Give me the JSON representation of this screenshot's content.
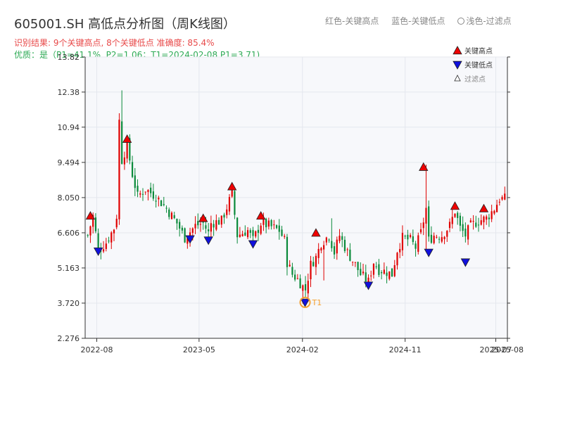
{
  "header": {
    "title": "605001.SH 高低点分析图（周K线图）",
    "result_line": "识别结果: 9个关键高点, 8个关键低点  准确度: 85.4%",
    "quality_line": "优质：是（P1=41.1%, P2=1.06；T1=2024-02-08 P1=3.71)"
  },
  "top_legend": {
    "red_label": "红色-关键高点",
    "blue_label": "蓝色-关键低点",
    "light_label": "浅色-过滤点"
  },
  "colors": {
    "up": "#e00000",
    "down": "#0a8a3a",
    "high_marker": "#ee0000",
    "low_marker": "#1010dd",
    "t1_ring": "#f5a030",
    "plot_bg": "#f7f8fb",
    "grid": "#e4e7ee"
  },
  "chart_data": {
    "type": "candlestick",
    "ylim": [
      2.276,
      13.82
    ],
    "yticks": [
      2.276,
      3.72,
      5.163,
      6.606,
      8.05,
      9.494,
      10.94,
      12.38,
      13.82
    ],
    "ytick_labels": [
      "2.276",
      "3.720",
      "5.163",
      "6.606",
      "8.050",
      "9.494",
      "10.94",
      "12.38",
      "13.82"
    ],
    "x_range": [
      "2022-07-01",
      "2025-08-01"
    ],
    "xticks": [
      "2022-08-01",
      "2023-05-01",
      "2024-02-01",
      "2024-11-01",
      "2025-07-01",
      "2025-08-01"
    ],
    "xtick_labels": [
      "2022-08",
      "2023-05",
      "2024-02",
      "2024-11",
      "2025-07",
      "2025-08"
    ],
    "grid": true,
    "legend_position": "top-right",
    "legend": [
      "关键高点",
      "关键低点",
      "过滤点"
    ],
    "close_path": [
      [
        "2022-07-08",
        6.5
      ],
      [
        "2022-07-22",
        7.3
      ],
      [
        "2022-08-05",
        5.9
      ],
      [
        "2022-08-26",
        6.2
      ],
      [
        "2022-09-16",
        6.8
      ],
      [
        "2022-09-23",
        7.3
      ],
      [
        "2022-09-30",
        11.2
      ],
      [
        "2022-10-07",
        9.6
      ],
      [
        "2022-10-21",
        10.2
      ],
      [
        "2022-11-04",
        9.0
      ],
      [
        "2022-11-18",
        8.1
      ],
      [
        "2022-12-09",
        8.4
      ],
      [
        "2023-01-06",
        8.1
      ],
      [
        "2023-02-03",
        7.6
      ],
      [
        "2023-03-03",
        7.0
      ],
      [
        "2023-03-24",
        6.4
      ],
      [
        "2023-04-21",
        6.9
      ],
      [
        "2023-05-12",
        7.0
      ],
      [
        "2023-05-26",
        6.6
      ],
      [
        "2023-06-02",
        7.0
      ],
      [
        "2023-06-30",
        7.1
      ],
      [
        "2023-07-28",
        8.2
      ],
      [
        "2023-08-11",
        6.5
      ],
      [
        "2023-09-08",
        6.7
      ],
      [
        "2023-09-22",
        6.3
      ],
      [
        "2023-10-13",
        7.0
      ],
      [
        "2023-11-03",
        6.9
      ],
      [
        "2023-12-01",
        6.7
      ],
      [
        "2023-12-15",
        6.3
      ],
      [
        "2023-12-22",
        5.4
      ],
      [
        "2024-01-05",
        4.9
      ],
      [
        "2024-01-19",
        4.7
      ],
      [
        "2024-02-02",
        4.4
      ],
      [
        "2024-02-08",
        4.2
      ],
      [
        "2024-02-23",
        5.3
      ],
      [
        "2024-03-08",
        5.6
      ],
      [
        "2024-03-22",
        6.2
      ],
      [
        "2024-04-12",
        6.5
      ],
      [
        "2024-04-26",
        5.8
      ],
      [
        "2024-05-10",
        6.5
      ],
      [
        "2024-05-31",
        5.8
      ],
      [
        "2024-06-21",
        5.3
      ],
      [
        "2024-07-05",
        4.9
      ],
      [
        "2024-07-26",
        4.6
      ],
      [
        "2024-08-09",
        5.4
      ],
      [
        "2024-08-23",
        5.1
      ],
      [
        "2024-09-13",
        5.0
      ],
      [
        "2024-09-27",
        4.9
      ],
      [
        "2024-10-11",
        5.9
      ],
      [
        "2024-10-25",
        6.4
      ],
      [
        "2024-11-15",
        6.3
      ],
      [
        "2024-11-29",
        6.0
      ],
      [
        "2024-12-13",
        6.6
      ],
      [
        "2024-12-27",
        7.6
      ],
      [
        "2025-01-03",
        6.3
      ],
      [
        "2025-01-17",
        6.5
      ],
      [
        "2025-02-07",
        6.5
      ],
      [
        "2025-02-28",
        6.9
      ],
      [
        "2025-03-14",
        7.5
      ],
      [
        "2025-03-28",
        6.8
      ],
      [
        "2025-04-11",
        6.5
      ],
      [
        "2025-04-25",
        6.9
      ],
      [
        "2025-05-16",
        7.1
      ],
      [
        "2025-06-06",
        7.2
      ],
      [
        "2025-06-27",
        7.6
      ],
      [
        "2025-07-11",
        8.0
      ],
      [
        "2025-07-25",
        8.0
      ]
    ],
    "spikes": [
      {
        "date": "2022-09-30",
        "high": 11.3
      },
      {
        "date": "2022-10-07",
        "high": 12.45
      },
      {
        "date": "2022-10-21",
        "high": 10.5
      },
      {
        "date": "2023-07-28",
        "high": 8.6
      },
      {
        "date": "2024-02-08",
        "low": 3.7
      },
      {
        "date": "2024-03-29",
        "low": 4.65
      },
      {
        "date": "2024-04-19",
        "high": 7.2
      },
      {
        "date": "2024-12-27",
        "high": 9.4
      },
      {
        "date": "2024-12-27",
        "low": 5.9
      }
    ],
    "key_highs": [
      {
        "date": "2022-07-15",
        "price": 7.3
      },
      {
        "date": "2022-10-21",
        "price": 10.45
      },
      {
        "date": "2023-05-12",
        "price": 7.2
      },
      {
        "date": "2023-07-28",
        "price": 8.5
      },
      {
        "date": "2023-10-13",
        "price": 7.3
      },
      {
        "date": "2024-03-08",
        "price": 6.6
      },
      {
        "date": "2024-12-20",
        "price": 9.3
      },
      {
        "date": "2025-03-14",
        "price": 7.7
      },
      {
        "date": "2025-05-30",
        "price": 7.6
      }
    ],
    "key_lows": [
      {
        "date": "2022-08-05",
        "price": 5.85
      },
      {
        "date": "2023-04-07",
        "price": 6.35
      },
      {
        "date": "2023-05-26",
        "price": 6.3
      },
      {
        "date": "2023-09-22",
        "price": 6.15
      },
      {
        "date": "2024-02-08",
        "price": 3.75
      },
      {
        "date": "2024-07-26",
        "price": 4.45
      },
      {
        "date": "2025-01-03",
        "price": 5.8
      },
      {
        "date": "2025-04-11",
        "price": 5.4
      }
    ],
    "t1_point": {
      "date": "2024-02-08",
      "price": 3.75,
      "label": "T1"
    }
  }
}
